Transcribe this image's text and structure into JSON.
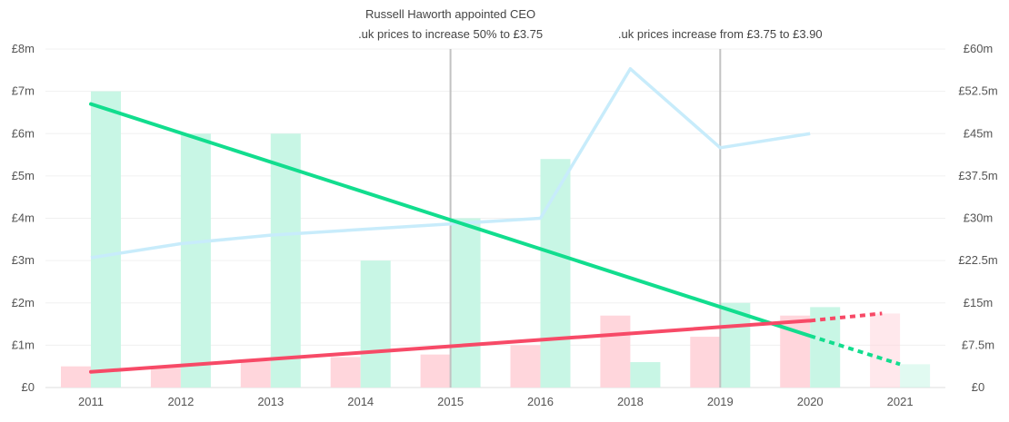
{
  "chart_data": {
    "type": "bar",
    "categories": [
      "2011",
      "2012",
      "2013",
      "2014",
      "2015",
      "2016",
      "2018",
      "2019",
      "2020",
      "2021"
    ],
    "y_left": {
      "ticks": [
        "£0",
        "£1m",
        "£2m",
        "£3m",
        "£4m",
        "£5m",
        "£6m",
        "£7m",
        "£8m"
      ],
      "ylim": [
        0,
        8
      ]
    },
    "y_right": {
      "ticks": [
        "£0",
        "£7.5m",
        "£15m",
        "£22.5m",
        "£30m",
        "£37.5m",
        "£45m",
        "£52.5m",
        "£60m"
      ],
      "ylim": [
        0,
        60
      ]
    },
    "series": [
      {
        "type": "bar",
        "axis": "left",
        "color": "#ffd6dc",
        "values": [
          0.5,
          0.5,
          0.62,
          0.72,
          0.78,
          1.0,
          1.7,
          1.2,
          1.7,
          1.75
        ],
        "faded_from_index": 9
      },
      {
        "type": "bar",
        "axis": "left",
        "color": "#c8f6e5",
        "values": [
          7.0,
          6.0,
          6.0,
          3.0,
          4.0,
          5.4,
          0.6,
          2.0,
          1.9,
          0.55
        ],
        "faded_from_index": 9
      },
      {
        "type": "line",
        "axis": "right",
        "color": "#c8ecfb",
        "values": [
          23,
          25.5,
          27,
          28,
          29,
          30,
          56.5,
          42.5,
          45,
          null
        ]
      },
      {
        "type": "trend",
        "axis": "left",
        "color": "#12dd8e",
        "from": {
          "index": 0,
          "value": 6.7
        },
        "solid_to": {
          "index": 8,
          "value": 1.22
        },
        "dotted_to": {
          "index": 9,
          "value": 0.55
        }
      },
      {
        "type": "trend",
        "axis": "left",
        "color": "#f74a67",
        "from": {
          "index": 0,
          "value": 0.37
        },
        "solid_to": {
          "index": 8,
          "value": 1.58
        },
        "dotted_to": {
          "index": 8.8,
          "value": 1.75
        }
      }
    ],
    "annotations": [
      {
        "at_index": 4,
        "labels": [
          "Russell Haworth appointed CEO",
          ".uk prices to increase 50% to £3.75"
        ]
      },
      {
        "at_index": 7,
        "labels": [
          ".uk prices increase from £3.75 to £3.90"
        ]
      }
    ],
    "grid": true
  }
}
